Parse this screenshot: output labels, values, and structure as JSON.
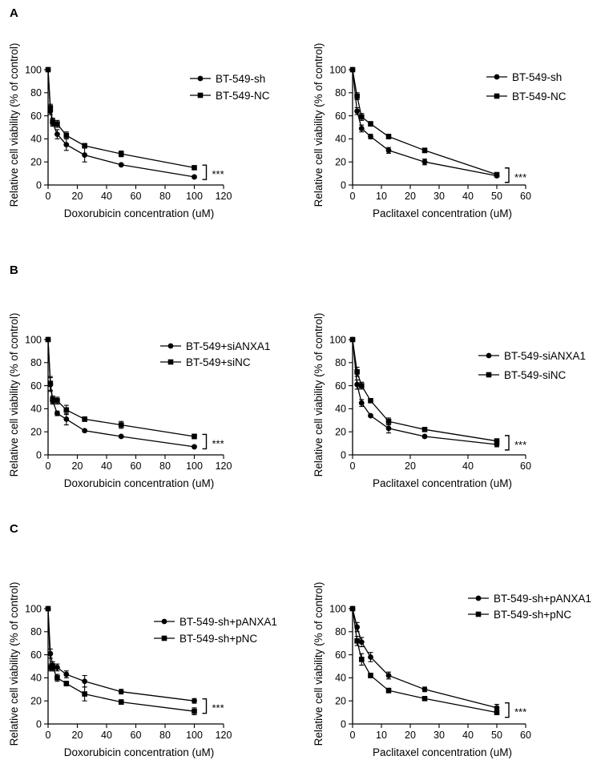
{
  "panel_labels": [
    "A",
    "B",
    "C"
  ],
  "chart_data": [
    {
      "type": "line",
      "panel": "A",
      "title": "",
      "xlabel": "Doxorubicin concentration (uM)",
      "ylabel": "Relative cell viability (% of control)",
      "xlim": [
        0,
        120
      ],
      "ylim": [
        0,
        100
      ],
      "xticks": [
        0,
        20,
        40,
        60,
        80,
        100,
        120
      ],
      "yticks": [
        0,
        20,
        40,
        60,
        80,
        100
      ],
      "legend_position": "top-right",
      "significance": "***",
      "series": [
        {
          "name": "BT-549-sh",
          "marker": "circle",
          "x": [
            0,
            1.5625,
            3.125,
            6.25,
            12.5,
            25,
            50,
            100
          ],
          "y": [
            100,
            64,
            54,
            44,
            35,
            26,
            17.5,
            7
          ],
          "err": [
            0,
            3,
            3,
            4,
            5,
            6,
            1,
            1
          ]
        },
        {
          "name": "BT-549-NC",
          "marker": "square",
          "x": [
            0,
            1.5625,
            3.125,
            6.25,
            12.5,
            25,
            50,
            100
          ],
          "y": [
            100,
            67,
            55,
            53,
            43,
            34,
            27,
            15
          ],
          "err": [
            0,
            3,
            3,
            3,
            3,
            2,
            2.5,
            1
          ]
        }
      ]
    },
    {
      "type": "line",
      "panel": "A",
      "title": "",
      "xlabel": "Paclitaxel concentration  (uM)",
      "ylabel": "Relative cell viability (% of control)",
      "xlim": [
        0,
        60
      ],
      "ylim": [
        0,
        100
      ],
      "xticks": [
        0,
        10,
        20,
        30,
        40,
        50,
        60
      ],
      "yticks": [
        0,
        20,
        40,
        60,
        80,
        100
      ],
      "legend_position": "top-right",
      "significance": "***",
      "series": [
        {
          "name": "BT-549-sh",
          "marker": "circle",
          "x": [
            0,
            1.5625,
            3.125,
            6.25,
            12.5,
            25,
            50
          ],
          "y": [
            100,
            64,
            49,
            42,
            30,
            20,
            8
          ],
          "err": [
            0,
            3,
            3,
            2,
            2.5,
            2.5,
            1
          ]
        },
        {
          "name": "BT-549-NC",
          "marker": "square",
          "x": [
            0,
            1.5625,
            3.125,
            6.25,
            12.5,
            25,
            50
          ],
          "y": [
            100,
            77,
            59,
            53,
            42,
            30,
            9
          ],
          "err": [
            0,
            3,
            3,
            2,
            2,
            2,
            1
          ]
        }
      ]
    },
    {
      "type": "line",
      "panel": "B",
      "title": "",
      "xlabel": "Doxorubicin concentration (uM)",
      "ylabel": "Relative cell viability (% of control)",
      "xlim": [
        0,
        120
      ],
      "ylim": [
        0,
        100
      ],
      "xticks": [
        0,
        20,
        40,
        60,
        80,
        100,
        120
      ],
      "yticks": [
        0,
        20,
        40,
        60,
        80,
        100
      ],
      "legend_position": "top-right",
      "significance": "***",
      "series": [
        {
          "name": "BT-549+siANXA1",
          "marker": "circle",
          "x": [
            0,
            1.5625,
            3.125,
            6.25,
            12.5,
            25,
            50,
            100
          ],
          "y": [
            100,
            61,
            47,
            36,
            31,
            21,
            16,
            7
          ],
          "err": [
            0,
            6,
            3,
            2,
            5,
            1,
            1,
            1
          ]
        },
        {
          "name": "BT-549+siNC",
          "marker": "square",
          "x": [
            0,
            1.5625,
            3.125,
            6.25,
            12.5,
            25,
            50,
            100
          ],
          "y": [
            100,
            62,
            48,
            47,
            39,
            31,
            26,
            16
          ],
          "err": [
            0,
            6,
            3,
            3,
            4,
            2,
            3,
            2
          ]
        }
      ]
    },
    {
      "type": "line",
      "panel": "B",
      "title": "",
      "xlabel": "Paclitaxel concentration (uM)",
      "ylabel": "Relative cell viability (% of control)",
      "xlim": [
        0,
        60
      ],
      "ylim": [
        0,
        100
      ],
      "xticks": [
        0,
        20,
        40,
        60
      ],
      "yticks": [
        0,
        20,
        40,
        60,
        80,
        100
      ],
      "legend_position": "top-right",
      "significance": "***",
      "series": [
        {
          "name": "BT-549-siANXA1",
          "marker": "circle",
          "x": [
            0,
            1.5625,
            3.125,
            6.25,
            12.5,
            25,
            50
          ],
          "y": [
            100,
            61,
            45,
            34,
            23,
            16,
            9
          ],
          "err": [
            0,
            4,
            3,
            1,
            4,
            1,
            2
          ]
        },
        {
          "name": "BT-549-siNC",
          "marker": "square",
          "x": [
            0,
            1.5625,
            3.125,
            6.25,
            12.5,
            25,
            50
          ],
          "y": [
            100,
            72,
            60,
            47,
            29,
            22,
            12
          ],
          "err": [
            0,
            4,
            3,
            1,
            3,
            1,
            2
          ]
        }
      ]
    },
    {
      "type": "line",
      "panel": "C",
      "title": "",
      "xlabel": "Doxorubicin concentration (uM)",
      "ylabel": "Relative cell viability (% of control)",
      "xlim": [
        0,
        120
      ],
      "ylim": [
        0,
        100
      ],
      "xticks": [
        0,
        20,
        40,
        60,
        80,
        100,
        120
      ],
      "yticks": [
        0,
        20,
        40,
        60,
        80,
        100
      ],
      "legend_position": "top-right",
      "significance": "***",
      "series": [
        {
          "name": "BT-549-sh+pANXA1",
          "marker": "circle",
          "x": [
            0,
            1.5625,
            3.125,
            6.25,
            12.5,
            25,
            50,
            100
          ],
          "y": [
            100,
            61,
            51,
            49,
            43,
            37,
            28,
            20
          ],
          "err": [
            0,
            4,
            3,
            3,
            3,
            5,
            2,
            2
          ]
        },
        {
          "name": "BT-549-sh+pNC",
          "marker": "square",
          "x": [
            0,
            1.5625,
            3.125,
            6.25,
            12.5,
            25,
            50,
            100
          ],
          "y": [
            100,
            49,
            49,
            40,
            35,
            26,
            19,
            11
          ],
          "err": [
            0,
            3,
            3,
            3,
            2,
            6,
            2,
            3
          ]
        }
      ]
    },
    {
      "type": "line",
      "panel": "C",
      "title": "",
      "xlabel": "Paclitaxel concentration (uM)",
      "ylabel": "Relative cell viability (% of control)",
      "xlim": [
        0,
        60
      ],
      "ylim": [
        0,
        100
      ],
      "xticks": [
        0,
        10,
        20,
        30,
        40,
        50,
        60
      ],
      "yticks": [
        0,
        20,
        40,
        60,
        80,
        100
      ],
      "legend_position": "top-right",
      "significance": "***",
      "series": [
        {
          "name": "BT-549-sh+pANXA1",
          "marker": "circle",
          "x": [
            0,
            1.5625,
            3.125,
            6.25,
            12.5,
            25,
            50
          ],
          "y": [
            100,
            84,
            71,
            58,
            42,
            30,
            14
          ],
          "err": [
            0,
            4,
            4,
            4,
            3,
            2,
            3
          ]
        },
        {
          "name": "BT-549-sh+pNC",
          "marker": "square",
          "x": [
            0,
            1.5625,
            3.125,
            6.25,
            12.5,
            25,
            50
          ],
          "y": [
            100,
            72,
            56,
            42,
            29,
            22,
            10
          ],
          "err": [
            0,
            4,
            5,
            2,
            2,
            1,
            2
          ]
        }
      ]
    }
  ]
}
